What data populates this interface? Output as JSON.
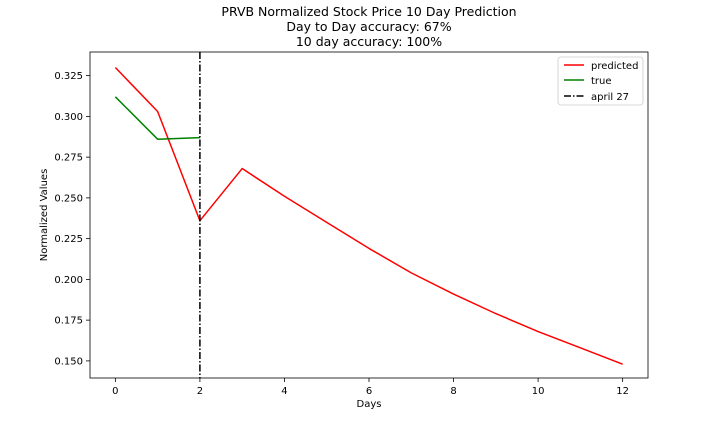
{
  "chart_data": {
    "type": "line",
    "title_lines": [
      "PRVB Normalized Stock Price 10 Day Prediction",
      "Day to Day accuracy: 67%",
      "10 day accuracy: 100%"
    ],
    "xlabel": "Days",
    "ylabel": "Normalized Values",
    "xlim": [
      -0.6,
      12.6
    ],
    "ylim": [
      0.1395,
      0.3395
    ],
    "xticks": [
      0,
      2,
      4,
      6,
      8,
      10,
      12
    ],
    "xtick_labels": [
      "0",
      "2",
      "4",
      "6",
      "8",
      "10",
      "12"
    ],
    "yticks": [
      0.15,
      0.175,
      0.2,
      0.225,
      0.25,
      0.275,
      0.3,
      0.325
    ],
    "ytick_labels": [
      "0.150",
      "0.175",
      "0.200",
      "0.225",
      "0.250",
      "0.275",
      "0.300",
      "0.325"
    ],
    "grid": false,
    "legend_position": "top-right",
    "series": [
      {
        "name": "predicted",
        "color": "#ff0000",
        "style": "solid",
        "x": [
          0,
          1,
          2,
          3,
          4,
          5,
          6,
          7,
          8,
          9,
          10,
          11,
          12
        ],
        "y": [
          0.33,
          0.303,
          0.236,
          0.268,
          0.251,
          0.235,
          0.219,
          0.204,
          0.191,
          0.179,
          0.168,
          0.158,
          0.148
        ]
      },
      {
        "name": "true",
        "color": "#008000",
        "style": "solid",
        "x": [
          0,
          1,
          2
        ],
        "y": [
          0.312,
          0.286,
          0.287
        ]
      }
    ],
    "vline": {
      "name": "april 27",
      "x": 2,
      "color": "#000000",
      "style": "dashdot"
    }
  }
}
